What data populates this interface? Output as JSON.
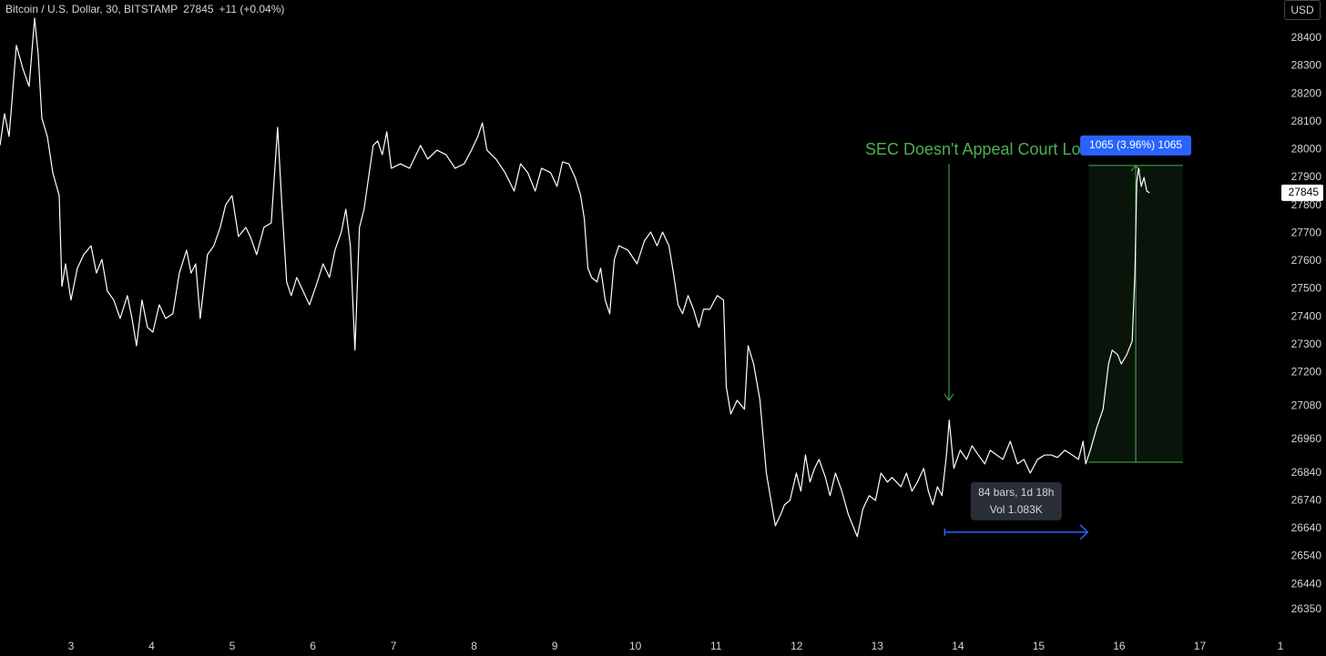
{
  "chart_data": {
    "type": "line",
    "title": "Bitcoin / U.S. Dollar, 30, BITSTAMP",
    "last_price": 27845,
    "change": "+11 (+0.04%)",
    "currency": "USD",
    "color": "#ffffff",
    "x": [
      2.12,
      2.176,
      2.233,
      2.323,
      2.402,
      2.481,
      2.549,
      2.594,
      2.639,
      2.707,
      2.775,
      2.854,
      2.888,
      2.933,
      3.0,
      3.079,
      3.158,
      3.249,
      3.316,
      3.384,
      3.452,
      3.531,
      3.61,
      3.7,
      3.757,
      3.813,
      3.881,
      3.949,
      4.016,
      4.095,
      4.174,
      4.264,
      4.344,
      4.434,
      4.49,
      4.547,
      4.603,
      4.693,
      4.772,
      4.851,
      4.919,
      4.998,
      5.077,
      5.168,
      5.224,
      5.303,
      5.393,
      5.484,
      5.563,
      5.619,
      5.675,
      5.732,
      5.8,
      5.879,
      5.958,
      6.037,
      6.127,
      6.206,
      6.274,
      6.353,
      6.409,
      6.465,
      6.522,
      6.578,
      6.635,
      6.691,
      6.748,
      6.804,
      6.861,
      6.917,
      6.973,
      7.086,
      7.199,
      7.335,
      7.425,
      7.538,
      7.651,
      7.764,
      7.876,
      7.967,
      8.046,
      8.102,
      8.159,
      8.271,
      8.384,
      8.497,
      8.576,
      8.666,
      8.757,
      8.836,
      8.949,
      9.028,
      9.096,
      9.174,
      9.253,
      9.321,
      9.366,
      9.411,
      9.457,
      9.524,
      9.569,
      9.626,
      9.682,
      9.739,
      9.795,
      9.908,
      10.021,
      10.111,
      10.19,
      10.269,
      10.337,
      10.416,
      10.472,
      10.529,
      10.585,
      10.653,
      10.721,
      10.788,
      10.845,
      10.924,
      11.014,
      11.093,
      11.127,
      11.183,
      11.262,
      11.353,
      11.398,
      11.466,
      11.545,
      11.624,
      11.691,
      11.736,
      11.804,
      11.849,
      11.917,
      11.996,
      12.052,
      12.109,
      12.165,
      12.222,
      12.278,
      12.357,
      12.414,
      12.481,
      12.56,
      12.639,
      12.707,
      12.752,
      12.82,
      12.899,
      12.978,
      13.046,
      13.125,
      13.184,
      13.294,
      13.362,
      13.43,
      13.498,
      13.576,
      13.633,
      13.689,
      13.746,
      13.802,
      13.858,
      13.892,
      13.949,
      14.028,
      14.107,
      14.175,
      14.253,
      14.333,
      14.4,
      14.479,
      14.558,
      14.649,
      14.739,
      14.818,
      14.897,
      14.987,
      15.077,
      15.157,
      15.235,
      15.326,
      15.416,
      15.495,
      15.552,
      15.585,
      15.642,
      15.721,
      15.8,
      15.868,
      15.913,
      15.981,
      16.026,
      16.094,
      16.161,
      16.195,
      16.218,
      16.24,
      16.274,
      16.308,
      16.342,
      16.376
    ],
    "values": [
      28015,
      28129,
      28047,
      28374,
      28292,
      28227,
      28472,
      28341,
      28113,
      28047,
      27917,
      27835,
      27509,
      27590,
      27460,
      27574,
      27623,
      27655,
      27557,
      27606,
      27492,
      27460,
      27394,
      27476,
      27394,
      27296,
      27460,
      27362,
      27345,
      27443,
      27394,
      27411,
      27557,
      27639,
      27557,
      27590,
      27394,
      27623,
      27655,
      27721,
      27802,
      27835,
      27688,
      27721,
      27688,
      27623,
      27721,
      27737,
      28080,
      27786,
      27525,
      27476,
      27541,
      27492,
      27443,
      27509,
      27590,
      27541,
      27639,
      27704,
      27786,
      27655,
      27280,
      27721,
      27786,
      27900,
      28015,
      28031,
      27982,
      28064,
      27933,
      27949,
      27933,
      28015,
      27966,
      27998,
      27982,
      27933,
      27949,
      27998,
      28047,
      28096,
      27998,
      27966,
      27917,
      27851,
      27949,
      27917,
      27851,
      27933,
      27917,
      27868,
      27956,
      27949,
      27900,
      27835,
      27753,
      27574,
      27541,
      27525,
      27574,
      27460,
      27411,
      27606,
      27655,
      27639,
      27590,
      27672,
      27704,
      27655,
      27704,
      27655,
      27557,
      27443,
      27411,
      27476,
      27427,
      27362,
      27427,
      27427,
      27476,
      27460,
      27149,
      27051,
      27100,
      27068,
      27296,
      27231,
      27100,
      26839,
      26725,
      26650,
      26692,
      26725,
      26741,
      26839,
      26774,
      26904,
      26807,
      26856,
      26888,
      26823,
      26758,
      26839,
      26774,
      26692,
      26643,
      26611,
      26709,
      26758,
      26741,
      26839,
      26807,
      26823,
      26790,
      26839,
      26774,
      26807,
      26856,
      26774,
      26725,
      26790,
      26758,
      26904,
      27029,
      26856,
      26921,
      26888,
      26937,
      26904,
      26872,
      26921,
      26904,
      26888,
      26953,
      26872,
      26888,
      26839,
      26888,
      26904,
      26904,
      26895,
      26921,
      26904,
      26888,
      26953,
      26872,
      26921,
      27002,
      27068,
      27231,
      27280,
      27264,
      27231,
      27264,
      27313,
      27557,
      27884,
      27933,
      27868,
      27900,
      27851,
      27845
    ],
    "xlim": [
      2.12,
      18.0
    ],
    "xticks": [
      3,
      4,
      5,
      6,
      7,
      8,
      9,
      10,
      11,
      12,
      13,
      14,
      15,
      16,
      17,
      {
        "value": 18,
        "label": "1"
      }
    ],
    "ylim": [
      26251,
      28537
    ],
    "yticks": [
      26350,
      26440,
      26540,
      26640,
      26740,
      26840,
      26960,
      27080,
      27200,
      27300,
      27400,
      27500,
      27600,
      27700,
      27800,
      27900,
      28000,
      28100,
      28200,
      28300,
      28400
    ],
    "annotation": "SEC Doesn't Appeal Court Loss",
    "price_range": {
      "label": "1065 (3.96%) 1065",
      "x": [
        15.62,
        16.79
      ],
      "y": [
        26878,
        27943
      ]
    },
    "date_range": {
      "labels": [
        "84 bars, 1d 18h",
        "Vol 1.083K"
      ],
      "x": [
        13.836,
        15.608
      ],
      "y": 26627
    }
  }
}
